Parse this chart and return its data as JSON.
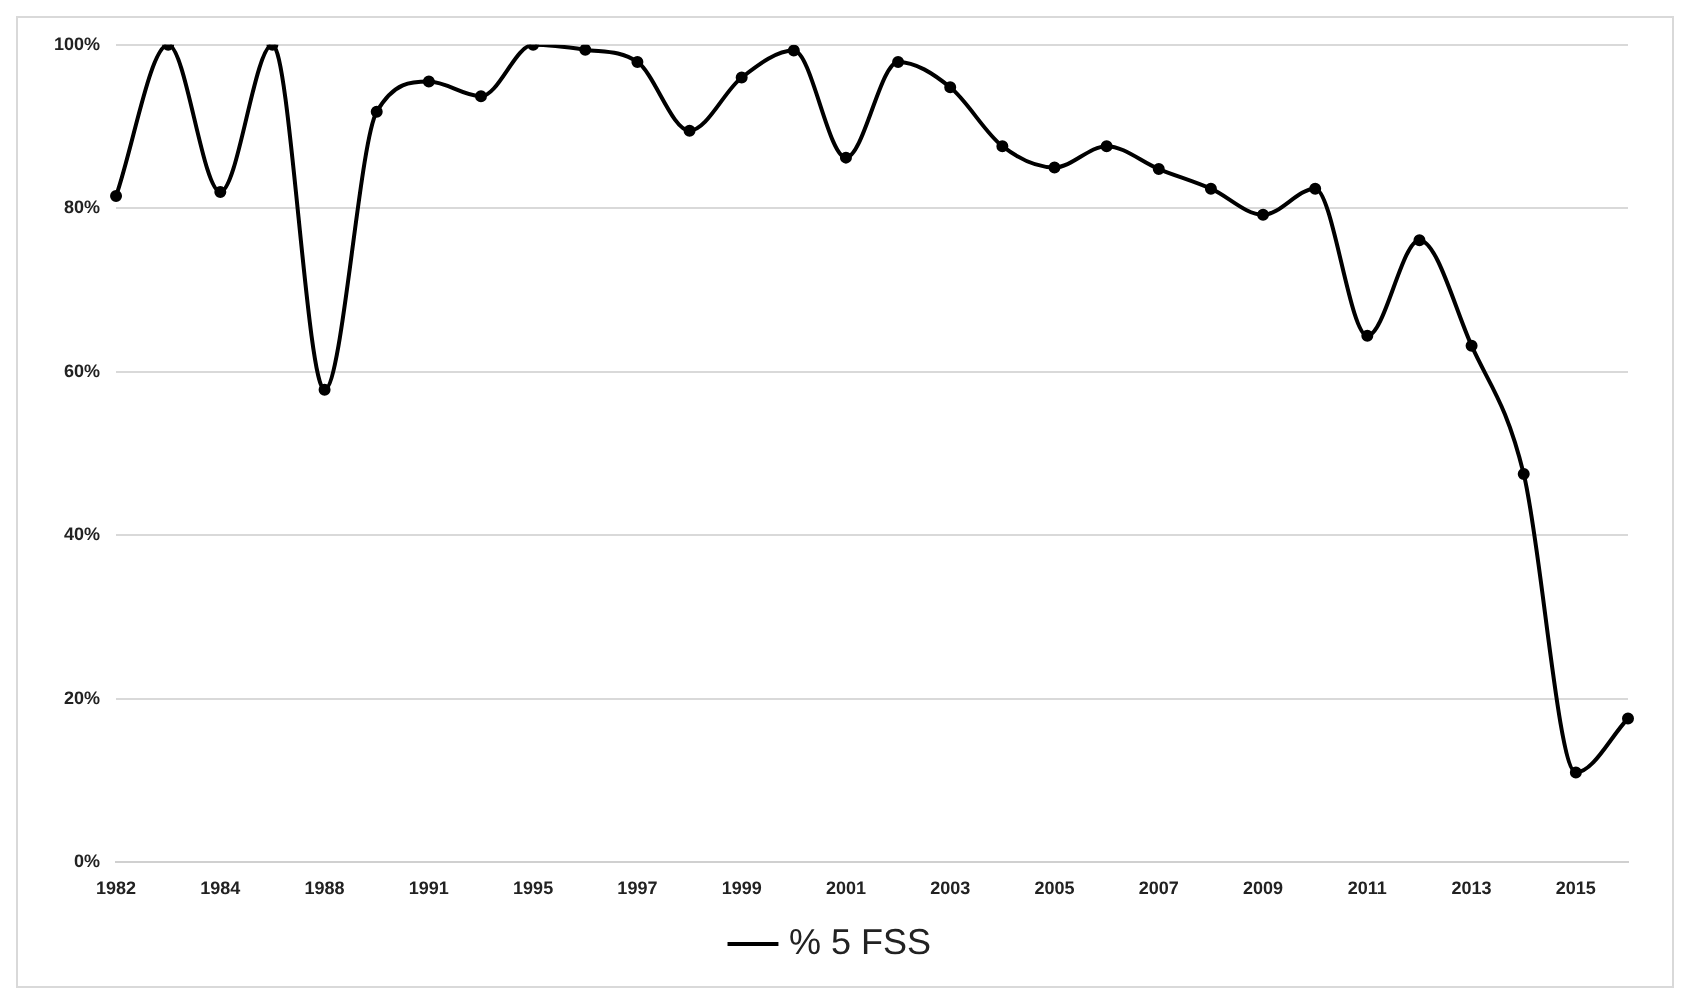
{
  "chart_data": {
    "type": "line",
    "categories": [
      "1982",
      null,
      "1984",
      null,
      "1988",
      null,
      "1991",
      null,
      "1995",
      null,
      "1997",
      null,
      "1999",
      null,
      "2001",
      null,
      "2003",
      null,
      "2005",
      null,
      "2007",
      null,
      "2009",
      null,
      "2011",
      null,
      "2013",
      null,
      "2015",
      null
    ],
    "series": [
      {
        "name": "% 5 FSS",
        "color": "#000000",
        "values": [
          81.5,
          100,
          82,
          100,
          57.8,
          91.8,
          95.5,
          93.7,
          100,
          99.4,
          97.9,
          89.5,
          96,
          99.3,
          86.2,
          97.9,
          94.8,
          87.6,
          85,
          87.6,
          84.8,
          82.4,
          79.2,
          82.4,
          64.4,
          76.1,
          63.2,
          47.5,
          11,
          17.6
        ]
      }
    ],
    "ylim": [
      0,
      100
    ],
    "yticks": [
      {
        "value": 0,
        "label": "0%"
      },
      {
        "value": 20,
        "label": "20%"
      },
      {
        "value": 40,
        "label": "40%"
      },
      {
        "value": 60,
        "label": "60%"
      },
      {
        "value": 80,
        "label": "80%"
      },
      {
        "value": 100,
        "label": "100%"
      }
    ],
    "grid": "y",
    "legend": "bottom",
    "marker": "circle",
    "line_style": "solid"
  }
}
